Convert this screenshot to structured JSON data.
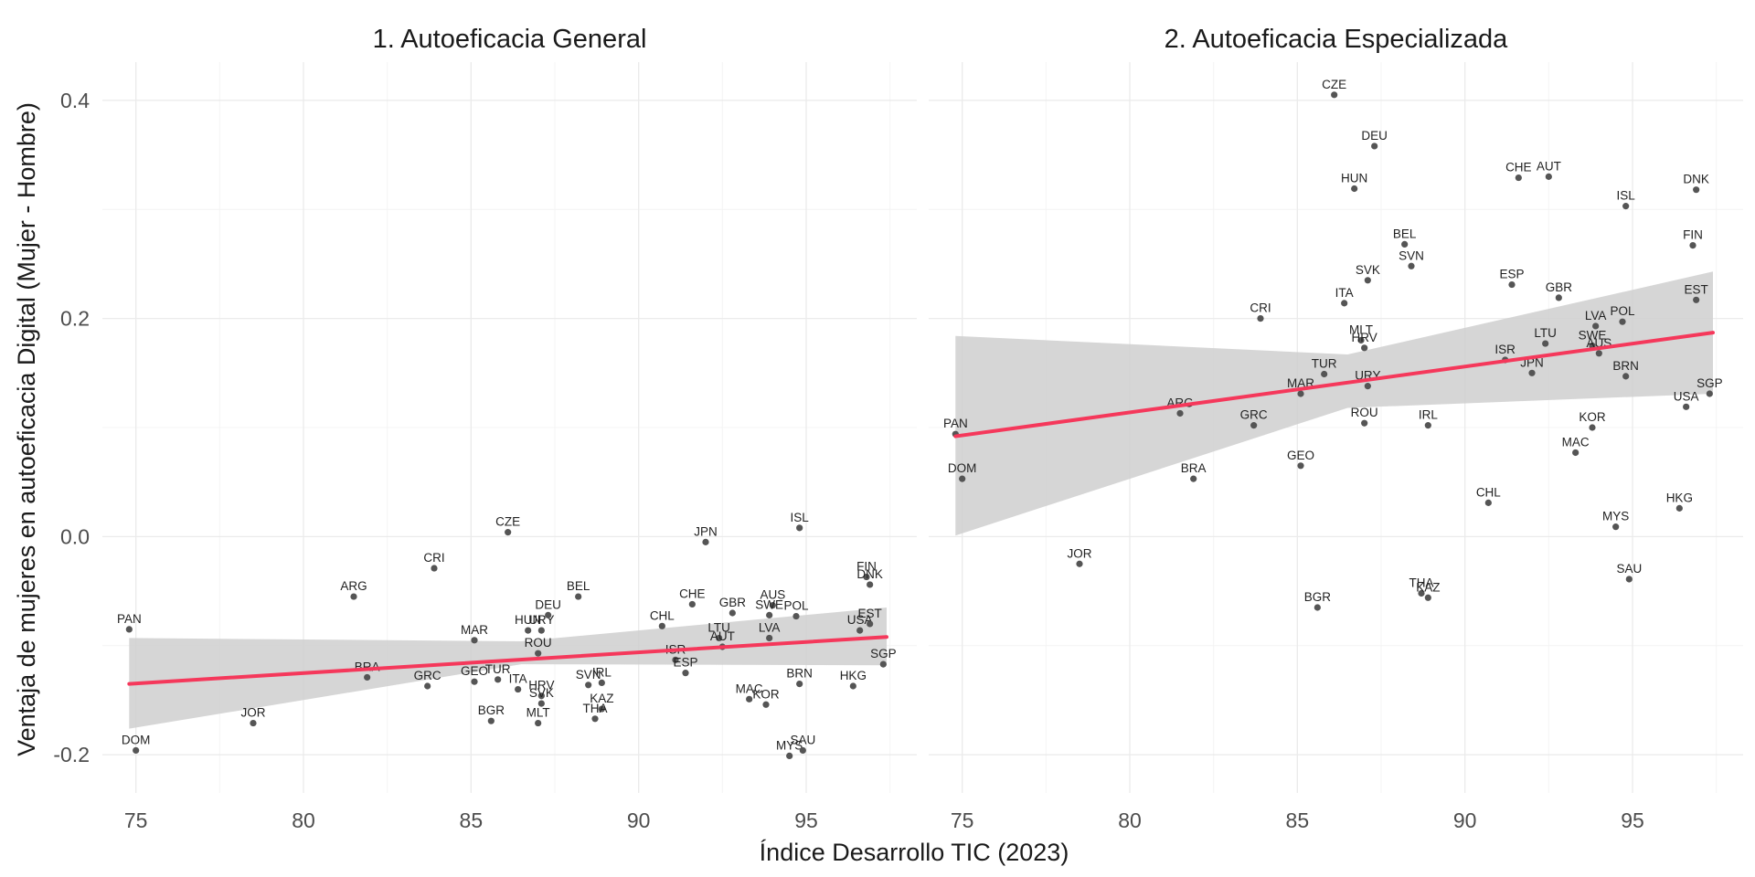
{
  "chart_data": {
    "type": "scatter",
    "xlabel": "Índice Desarrollo TIC (2023)",
    "ylabel": "Ventaja de mujeres en autoeficacia Digital (Mujer - Hombre)",
    "xlim": [
      74,
      98.3
    ],
    "ylim": [
      -0.235,
      0.435
    ],
    "x_ticks": [
      75,
      80,
      85,
      90,
      95
    ],
    "y_ticks": [
      -0.2,
      0.0,
      0.2,
      0.4
    ],
    "x_tick_labels": [
      "75",
      "80",
      "85",
      "90",
      "95"
    ],
    "y_tick_labels": [
      "-0.2",
      "0.0",
      "0.2",
      "0.4"
    ],
    "grid": true,
    "colors": {
      "point": "#555555",
      "trend": "#f5385b",
      "ribbon": "#cfcfcf",
      "grid": "#ebebeb"
    },
    "panels": [
      {
        "title": "1. Autoeficacia General",
        "trend": {
          "x": [
            74.8,
            97.4
          ],
          "y": [
            -0.135,
            -0.092
          ]
        },
        "ribbon": {
          "x": [
            74.8,
            86.5,
            97.4
          ],
          "upper": [
            -0.093,
            -0.096,
            -0.065
          ],
          "lower": [
            -0.176,
            -0.117,
            -0.118
          ]
        },
        "points": [
          {
            "label": "PAN",
            "x": 74.8,
            "y": -0.085
          },
          {
            "label": "DOM",
            "x": 75.0,
            "y": -0.196
          },
          {
            "label": "JOR",
            "x": 78.5,
            "y": -0.171
          },
          {
            "label": "ARG",
            "x": 81.5,
            "y": -0.055
          },
          {
            "label": "BRA",
            "x": 81.9,
            "y": -0.129
          },
          {
            "label": "GRC",
            "x": 83.7,
            "y": -0.137
          },
          {
            "label": "CRI",
            "x": 83.9,
            "y": -0.029
          },
          {
            "label": "MAR",
            "x": 85.1,
            "y": -0.095
          },
          {
            "label": "GEO",
            "x": 85.1,
            "y": -0.133
          },
          {
            "label": "BGR",
            "x": 85.6,
            "y": -0.169
          },
          {
            "label": "TUR",
            "x": 85.8,
            "y": -0.131
          },
          {
            "label": "CZE",
            "x": 86.1,
            "y": 0.004
          },
          {
            "label": "ITA",
            "x": 86.4,
            "y": -0.14
          },
          {
            "label": "HUN",
            "x": 86.7,
            "y": -0.086
          },
          {
            "label": "URY",
            "x": 87.1,
            "y": -0.086
          },
          {
            "label": "ROU",
            "x": 87.0,
            "y": -0.107
          },
          {
            "label": "HRV",
            "x": 87.1,
            "y": -0.146
          },
          {
            "label": "SVK",
            "x": 87.1,
            "y": -0.153
          },
          {
            "label": "MLT",
            "x": 87.0,
            "y": -0.171
          },
          {
            "label": "DEU",
            "x": 87.3,
            "y": -0.072
          },
          {
            "label": "BEL",
            "x": 88.2,
            "y": -0.055
          },
          {
            "label": "SVN",
            "x": 88.5,
            "y": -0.136
          },
          {
            "label": "IRL",
            "x": 88.9,
            "y": -0.134
          },
          {
            "label": "KAZ",
            "x": 88.9,
            "y": -0.158
          },
          {
            "label": "THA",
            "x": 88.7,
            "y": -0.167
          },
          {
            "label": "CHL",
            "x": 90.7,
            "y": -0.082
          },
          {
            "label": "ISR",
            "x": 91.1,
            "y": -0.113
          },
          {
            "label": "ESP",
            "x": 91.4,
            "y": -0.125
          },
          {
            "label": "CHE",
            "x": 91.6,
            "y": -0.062
          },
          {
            "label": "JPN",
            "x": 92.0,
            "y": -0.005
          },
          {
            "label": "LTU",
            "x": 92.4,
            "y": -0.093
          },
          {
            "label": "AUT",
            "x": 92.5,
            "y": -0.101
          },
          {
            "label": "GBR",
            "x": 92.8,
            "y": -0.07
          },
          {
            "label": "MAC",
            "x": 93.3,
            "y": -0.149
          },
          {
            "label": "KOR",
            "x": 93.8,
            "y": -0.154
          },
          {
            "label": "LVA",
            "x": 93.9,
            "y": -0.093
          },
          {
            "label": "AUS",
            "x": 94.0,
            "y": -0.063
          },
          {
            "label": "SWE",
            "x": 93.9,
            "y": -0.072
          },
          {
            "label": "POL",
            "x": 94.7,
            "y": -0.073
          },
          {
            "label": "BRN",
            "x": 94.8,
            "y": -0.135
          },
          {
            "label": "ISL",
            "x": 94.8,
            "y": 0.008
          },
          {
            "label": "MYS",
            "x": 94.5,
            "y": -0.201
          },
          {
            "label": "SAU",
            "x": 94.9,
            "y": -0.196
          },
          {
            "label": "HKG",
            "x": 96.4,
            "y": -0.137
          },
          {
            "label": "USA",
            "x": 96.6,
            "y": -0.086
          },
          {
            "label": "EST",
            "x": 96.9,
            "y": -0.08
          },
          {
            "label": "FIN",
            "x": 96.8,
            "y": -0.037
          },
          {
            "label": "DNK",
            "x": 96.9,
            "y": -0.044
          },
          {
            "label": "SGP",
            "x": 97.3,
            "y": -0.117
          }
        ]
      },
      {
        "title": "2. Autoeficacia Especializada",
        "trend": {
          "x": [
            74.8,
            97.4
          ],
          "y": [
            0.092,
            0.187
          ]
        },
        "ribbon": {
          "x": [
            74.8,
            86.5,
            97.4
          ],
          "upper": [
            0.184,
            0.167,
            0.243
          ],
          "lower": [
            0.001,
            0.118,
            0.131
          ]
        },
        "points": [
          {
            "label": "PAN",
            "x": 74.8,
            "y": 0.094
          },
          {
            "label": "DOM",
            "x": 75.0,
            "y": 0.053
          },
          {
            "label": "JOR",
            "x": 78.5,
            "y": -0.025
          },
          {
            "label": "ARG",
            "x": 81.5,
            "y": 0.113
          },
          {
            "label": "BRA",
            "x": 81.9,
            "y": 0.053
          },
          {
            "label": "GRC",
            "x": 83.7,
            "y": 0.102
          },
          {
            "label": "CRI",
            "x": 83.9,
            "y": 0.2
          },
          {
            "label": "MAR",
            "x": 85.1,
            "y": 0.131
          },
          {
            "label": "GEO",
            "x": 85.1,
            "y": 0.065
          },
          {
            "label": "BGR",
            "x": 85.6,
            "y": -0.065
          },
          {
            "label": "TUR",
            "x": 85.8,
            "y": 0.149
          },
          {
            "label": "CZE",
            "x": 86.1,
            "y": 0.405
          },
          {
            "label": "ITA",
            "x": 86.4,
            "y": 0.214
          },
          {
            "label": "HUN",
            "x": 86.7,
            "y": 0.319
          },
          {
            "label": "MLT",
            "x": 86.9,
            "y": 0.18
          },
          {
            "label": "HRV",
            "x": 87.0,
            "y": 0.173
          },
          {
            "label": "ROU",
            "x": 87.0,
            "y": 0.104
          },
          {
            "label": "URY",
            "x": 87.1,
            "y": 0.138
          },
          {
            "label": "SVK",
            "x": 87.1,
            "y": 0.235
          },
          {
            "label": "DEU",
            "x": 87.3,
            "y": 0.358
          },
          {
            "label": "BEL",
            "x": 88.2,
            "y": 0.268
          },
          {
            "label": "SVN",
            "x": 88.4,
            "y": 0.248
          },
          {
            "label": "THA",
            "x": 88.7,
            "y": -0.052
          },
          {
            "label": "KAZ",
            "x": 88.9,
            "y": -0.056
          },
          {
            "label": "IRL",
            "x": 88.9,
            "y": 0.102
          },
          {
            "label": "CHL",
            "x": 90.7,
            "y": 0.031
          },
          {
            "label": "ISR",
            "x": 91.2,
            "y": 0.162
          },
          {
            "label": "ESP",
            "x": 91.4,
            "y": 0.231
          },
          {
            "label": "CHE",
            "x": 91.6,
            "y": 0.329
          },
          {
            "label": "JPN",
            "x": 92.0,
            "y": 0.15
          },
          {
            "label": "LTU",
            "x": 92.4,
            "y": 0.177
          },
          {
            "label": "AUT",
            "x": 92.5,
            "y": 0.33
          },
          {
            "label": "GBR",
            "x": 92.8,
            "y": 0.219
          },
          {
            "label": "MAC",
            "x": 93.3,
            "y": 0.077
          },
          {
            "label": "SWE",
            "x": 93.8,
            "y": 0.175
          },
          {
            "label": "KOR",
            "x": 93.8,
            "y": 0.1
          },
          {
            "label": "LVA",
            "x": 93.9,
            "y": 0.193
          },
          {
            "label": "AUS",
            "x": 94.0,
            "y": 0.168
          },
          {
            "label": "POL",
            "x": 94.7,
            "y": 0.197
          },
          {
            "label": "MYS",
            "x": 94.5,
            "y": 0.009
          },
          {
            "label": "BRN",
            "x": 94.8,
            "y": 0.147
          },
          {
            "label": "ISL",
            "x": 94.8,
            "y": 0.303
          },
          {
            "label": "SAU",
            "x": 94.9,
            "y": -0.039
          },
          {
            "label": "HKG",
            "x": 96.4,
            "y": 0.026
          },
          {
            "label": "USA",
            "x": 96.6,
            "y": 0.119
          },
          {
            "label": "FIN",
            "x": 96.8,
            "y": 0.267
          },
          {
            "label": "DNK",
            "x": 96.9,
            "y": 0.318
          },
          {
            "label": "EST",
            "x": 96.9,
            "y": 0.217
          },
          {
            "label": "SGP",
            "x": 97.3,
            "y": 0.131
          }
        ]
      }
    ]
  }
}
